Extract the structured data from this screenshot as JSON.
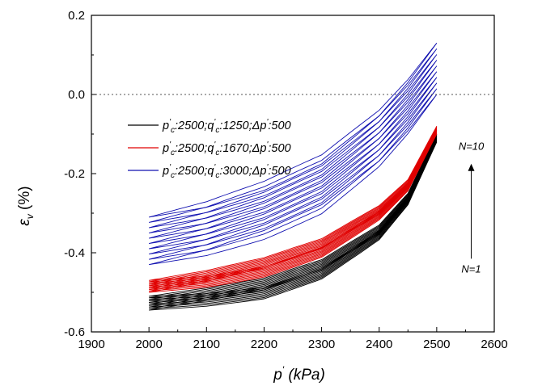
{
  "chart_data": {
    "type": "line",
    "title": "",
    "xlabel": "p (kPa)",
    "xlabel_parts": {
      "symbol": "p",
      "prime": "'",
      "unit": " (kPa)"
    },
    "ylabel": "εv (%)",
    "ylabel_parts": {
      "symbol": "ε",
      "sub": "v",
      "unit": " (%)"
    },
    "xlim": [
      1900,
      2600
    ],
    "ylim": [
      -0.6,
      0.2
    ],
    "xticks": [
      "1900",
      "2000",
      "2100",
      "2200",
      "2300",
      "2400",
      "2500",
      "2600"
    ],
    "yticks": [
      "-0.6",
      "-0.4",
      "-0.2",
      "0.0",
      "0.2"
    ],
    "grid": false,
    "legend_position": "upper-left",
    "reference_line": {
      "y": 0.0,
      "style": "dotted"
    },
    "cycles": 10,
    "series": [
      {
        "name": "p'c:2500;q'c:1250;Δp':500",
        "legend": {
          "pc": "2500",
          "qc": "1250",
          "dp": "500"
        },
        "color": "#000000",
        "cycle_start_first": -0.545,
        "cycle_start_last": -0.51,
        "cycle_end_first": -0.12,
        "cycle_end_last": -0.1,
        "x": [
          2000,
          2100,
          2200,
          2300,
          2400,
          2450,
          2500
        ],
        "y": [
          -0.545,
          -0.528,
          -0.505,
          -0.455,
          -0.36,
          -0.275,
          -0.12
        ]
      },
      {
        "name": "p'c:2500;q'c:1670;Δp':500",
        "legend": {
          "pc": "2500",
          "qc": "1670",
          "dp": "500"
        },
        "color": "#e00000",
        "cycle_start_first": -0.5,
        "cycle_start_last": -0.47,
        "cycle_end_first": -0.1,
        "cycle_end_last": -0.08,
        "x": [
          2000,
          2100,
          2200,
          2300,
          2400,
          2450,
          2500
        ],
        "y": [
          -0.5,
          -0.48,
          -0.45,
          -0.4,
          -0.31,
          -0.24,
          -0.1
        ]
      },
      {
        "name": "p'c:2500;q'c:3000;Δp':500",
        "legend": {
          "pc": "2500",
          "qc": "3000",
          "dp": "500"
        },
        "color": "#1010b0",
        "cycle_start_first": -0.43,
        "cycle_start_last": -0.31,
        "cycle_end_first": 0.0,
        "cycle_end_last": 0.13,
        "x": [
          2000,
          2100,
          2200,
          2300,
          2400,
          2450,
          2500
        ],
        "y": [
          -0.43,
          -0.4,
          -0.355,
          -0.29,
          -0.175,
          -0.095,
          0.0
        ]
      }
    ],
    "annotations": [
      {
        "text": "N=10",
        "at": [
          2560,
          -0.14
        ]
      },
      {
        "text": "N=1",
        "at": [
          2560,
          -0.45
        ]
      }
    ],
    "arrow": {
      "x": 2560,
      "y_from": -0.415,
      "y_to": -0.175
    }
  }
}
